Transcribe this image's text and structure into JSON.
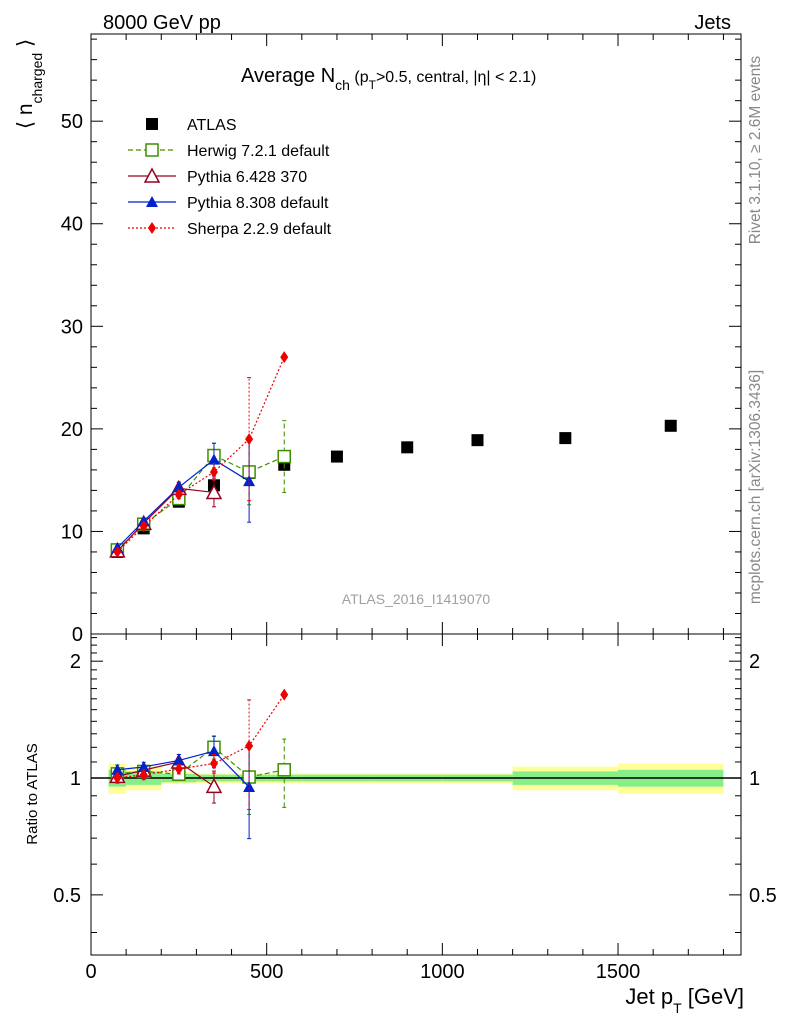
{
  "header": {
    "left": "8000 GeV pp",
    "right": "Jets"
  },
  "side_labels": {
    "rivet": "Rivet 3.1.10, ≥ 2.6M events",
    "mcplots": "mcplots.cern.ch [arXiv:1306.3436]"
  },
  "watermark": "ATLAS_2016_I1419070",
  "chart_data": [
    {
      "type": "scatter",
      "title": "Average N_ch (p_T>0.5, central, |η| < 2.1)",
      "title_parts": {
        "main": "Average N",
        "sub": "ch",
        "open": " (p",
        "sub2": "T",
        "close": ">0.5, central, |η| < 2.1)"
      },
      "ylabel": "⟨ n_charged ⟩",
      "ylabel_parts": {
        "open": "⟨ n",
        "sub": "charged",
        "close": " ⟩"
      },
      "xlim": [
        0,
        1850
      ],
      "ylim": [
        0,
        58.5
      ],
      "yticks": [
        0,
        10,
        20,
        30,
        40,
        50
      ],
      "ytick_labels": [
        "0",
        "10",
        "20",
        "30",
        "40",
        "50"
      ],
      "legend_position": "top-left",
      "series": [
        {
          "name": "ATLAS",
          "color": "#000000",
          "marker": "square-filled",
          "line": "none",
          "x": [
            75,
            150,
            250,
            350,
            450,
            550,
            700,
            900,
            1100,
            1350,
            1650
          ],
          "y": [
            8.0,
            10.3,
            12.9,
            14.5,
            15.7,
            16.5,
            17.3,
            18.2,
            18.9,
            19.1,
            20.3
          ]
        },
        {
          "name": "Herwig 7.2.1 default",
          "color": "#3d8f00",
          "marker": "square-open",
          "line": "dashed",
          "x": [
            75,
            150,
            250,
            350,
            450,
            550
          ],
          "y": [
            8.2,
            10.7,
            13.2,
            17.4,
            15.8,
            17.3
          ],
          "err": [
            0.2,
            0.3,
            0.4,
            1.2,
            3.2,
            3.5
          ]
        },
        {
          "name": "Pythia 6.428 370",
          "color": "#990022",
          "marker": "triangle-open",
          "line": "solid",
          "x": [
            75,
            150,
            250,
            350
          ],
          "y": [
            8.1,
            10.8,
            14.2,
            13.8
          ],
          "err": [
            0.2,
            0.3,
            0.6,
            1.4
          ]
        },
        {
          "name": "Pythia 8.308 default",
          "color": "#0022cc",
          "marker": "triangle-filled",
          "line": "solid",
          "x": [
            75,
            150,
            250,
            350,
            450
          ],
          "y": [
            8.4,
            11.0,
            14.3,
            17.0,
            14.9
          ],
          "err": [
            0.2,
            0.3,
            0.5,
            1.6,
            4.0
          ]
        },
        {
          "name": "Sherpa 2.2.9 default",
          "color": "#ee0000",
          "marker": "diamond-filled",
          "line": "dotted",
          "x": [
            75,
            150,
            250,
            350,
            450,
            550
          ],
          "y": [
            8.0,
            10.5,
            13.6,
            15.8,
            19.0,
            27.0
          ],
          "err": [
            0.2,
            0.3,
            0.4,
            0.8,
            6.0,
            0.0
          ]
        }
      ]
    },
    {
      "type": "scatter",
      "ylabel": "Ratio to ATLAS",
      "xlabel": "Jet p_T [GeV]",
      "xlabel_parts": {
        "main": "Jet p",
        "sub": "T",
        "close": " [GeV]"
      },
      "xlim": [
        0,
        1850
      ],
      "ylim": [
        0.35,
        2.35
      ],
      "xticks": [
        0,
        500,
        1000,
        1500
      ],
      "xtick_labels": [
        "0",
        "500",
        "1000",
        "1500"
      ],
      "yticks": [
        0.5,
        1,
        2
      ],
      "ytick_labels": [
        "0.5",
        "1",
        "2"
      ],
      "reference_band": {
        "x_edges": [
          50,
          100,
          200,
          300,
          400,
          500,
          600,
          800,
          1000,
          1200,
          1500,
          1800
        ],
        "inner": [
          0.05,
          0.04,
          0.025,
          0.02,
          0.02,
          0.02,
          0.02,
          0.02,
          0.02,
          0.04,
          0.05
        ],
        "outer": [
          0.09,
          0.07,
          0.035,
          0.03,
          0.03,
          0.03,
          0.03,
          0.03,
          0.03,
          0.07,
          0.09
        ],
        "inner_color": "#88ee88",
        "outer_color": "#ffff99"
      },
      "series": [
        {
          "name": "Herwig 7.2.1 default",
          "x": [
            75,
            150,
            250,
            350,
            450,
            550
          ],
          "y": [
            1.025,
            1.04,
            1.023,
            1.2,
            1.006,
            1.05
          ],
          "err": [
            0.03,
            0.03,
            0.03,
            0.08,
            0.2,
            0.21
          ]
        },
        {
          "name": "Pythia 6.428 370",
          "x": [
            75,
            150,
            250,
            350
          ],
          "y": [
            1.01,
            1.048,
            1.1,
            0.952
          ],
          "err": [
            0.03,
            0.03,
            0.05,
            0.09
          ]
        },
        {
          "name": "Pythia 8.308 default",
          "x": [
            75,
            150,
            250,
            350,
            450
          ],
          "y": [
            1.05,
            1.068,
            1.11,
            1.173,
            0.948
          ],
          "err": [
            0.03,
            0.03,
            0.04,
            0.11,
            0.25
          ]
        },
        {
          "name": "Sherpa 2.2.9 default",
          "x": [
            75,
            150,
            250,
            350,
            450,
            550
          ],
          "y": [
            1.0,
            1.02,
            1.055,
            1.09,
            1.21,
            1.64
          ],
          "err": [
            0.03,
            0.03,
            0.03,
            0.06,
            0.38,
            0.0
          ]
        }
      ]
    }
  ]
}
